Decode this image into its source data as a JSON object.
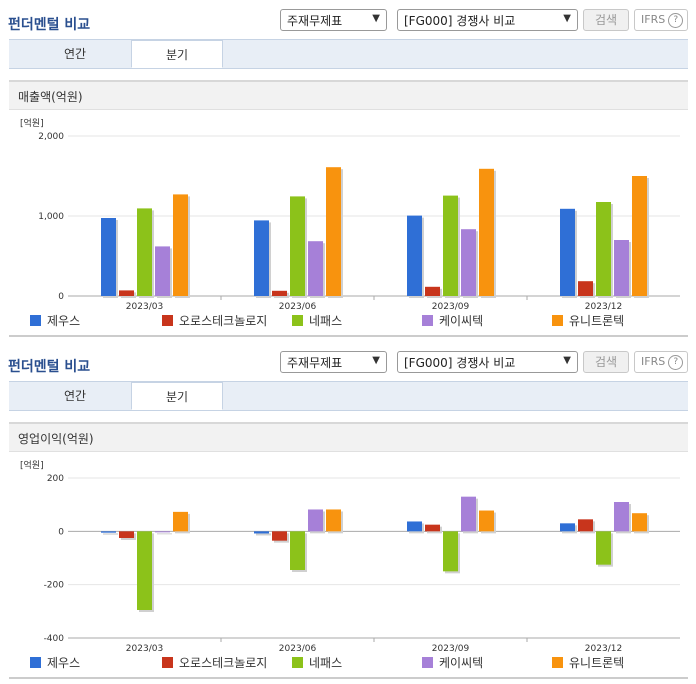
{
  "panels": [
    {
      "title": "펀더멘털 비교",
      "select_a": "주재무제표",
      "select_b": "[FG000] 경쟁사 비교",
      "search_button": "검색",
      "ifrs_label": "IFRS",
      "help_icon": "?",
      "tabs": [
        "연간",
        "분기"
      ],
      "active_tab": 1,
      "metric_title": "매출액(억원)"
    },
    {
      "title": "펀더멘털 비교",
      "select_a": "주재무제표",
      "select_b": "[FG000] 경쟁사 비교",
      "search_button": "검색",
      "ifrs_label": "IFRS",
      "help_icon": "?",
      "tabs": [
        "연간",
        "분기"
      ],
      "active_tab": 1,
      "metric_title": "영업이익(억원)"
    }
  ],
  "colors": {
    "제우스": "#2f6fd6",
    "오로스테크놀로지": "#c8351c",
    "네패스": "#8cc21a",
    "케이씨텍": "#a680d8",
    "유니트론텍": "#f8930e"
  },
  "chart_data": [
    {
      "type": "bar",
      "title": "매출액(억원)",
      "ylabel": "[억원]",
      "categories": [
        "2023/03",
        "2023/06",
        "2023/09",
        "2023/12"
      ],
      "ylim": [
        0,
        2000
      ],
      "yticks": [
        0,
        1000,
        2000
      ],
      "ytick_labels": [
        "0",
        "1,000",
        "2,000"
      ],
      "series": [
        {
          "name": "제우스",
          "values": [
            975,
            945,
            1005,
            1090
          ]
        },
        {
          "name": "오로스테크놀로지",
          "values": [
            70,
            65,
            115,
            185
          ]
        },
        {
          "name": "네패스",
          "values": [
            1095,
            1245,
            1255,
            1175
          ]
        },
        {
          "name": "케이씨텍",
          "values": [
            620,
            685,
            835,
            700
          ]
        },
        {
          "name": "유니트론텍",
          "values": [
            1270,
            1610,
            1590,
            1500
          ]
        }
      ]
    },
    {
      "type": "bar",
      "title": "영업이익(억원)",
      "ylabel": "[억원]",
      "categories": [
        "2023/03",
        "2023/06",
        "2023/09",
        "2023/12"
      ],
      "ylim": [
        -400,
        200
      ],
      "yticks": [
        -400,
        -200,
        0,
        200
      ],
      "ytick_labels": [
        "-400",
        "-200",
        "0",
        "200"
      ],
      "series": [
        {
          "name": "제우스",
          "values": [
            -5,
            -8,
            37,
            30
          ]
        },
        {
          "name": "오로스테크놀로지",
          "values": [
            -25,
            -35,
            25,
            45
          ]
        },
        {
          "name": "네패스",
          "values": [
            -295,
            -145,
            -150,
            -125
          ]
        },
        {
          "name": "케이씨텍",
          "values": [
            -2,
            82,
            130,
            110
          ]
        },
        {
          "name": "유니트론텍",
          "values": [
            73,
            82,
            78,
            68
          ]
        }
      ]
    }
  ]
}
